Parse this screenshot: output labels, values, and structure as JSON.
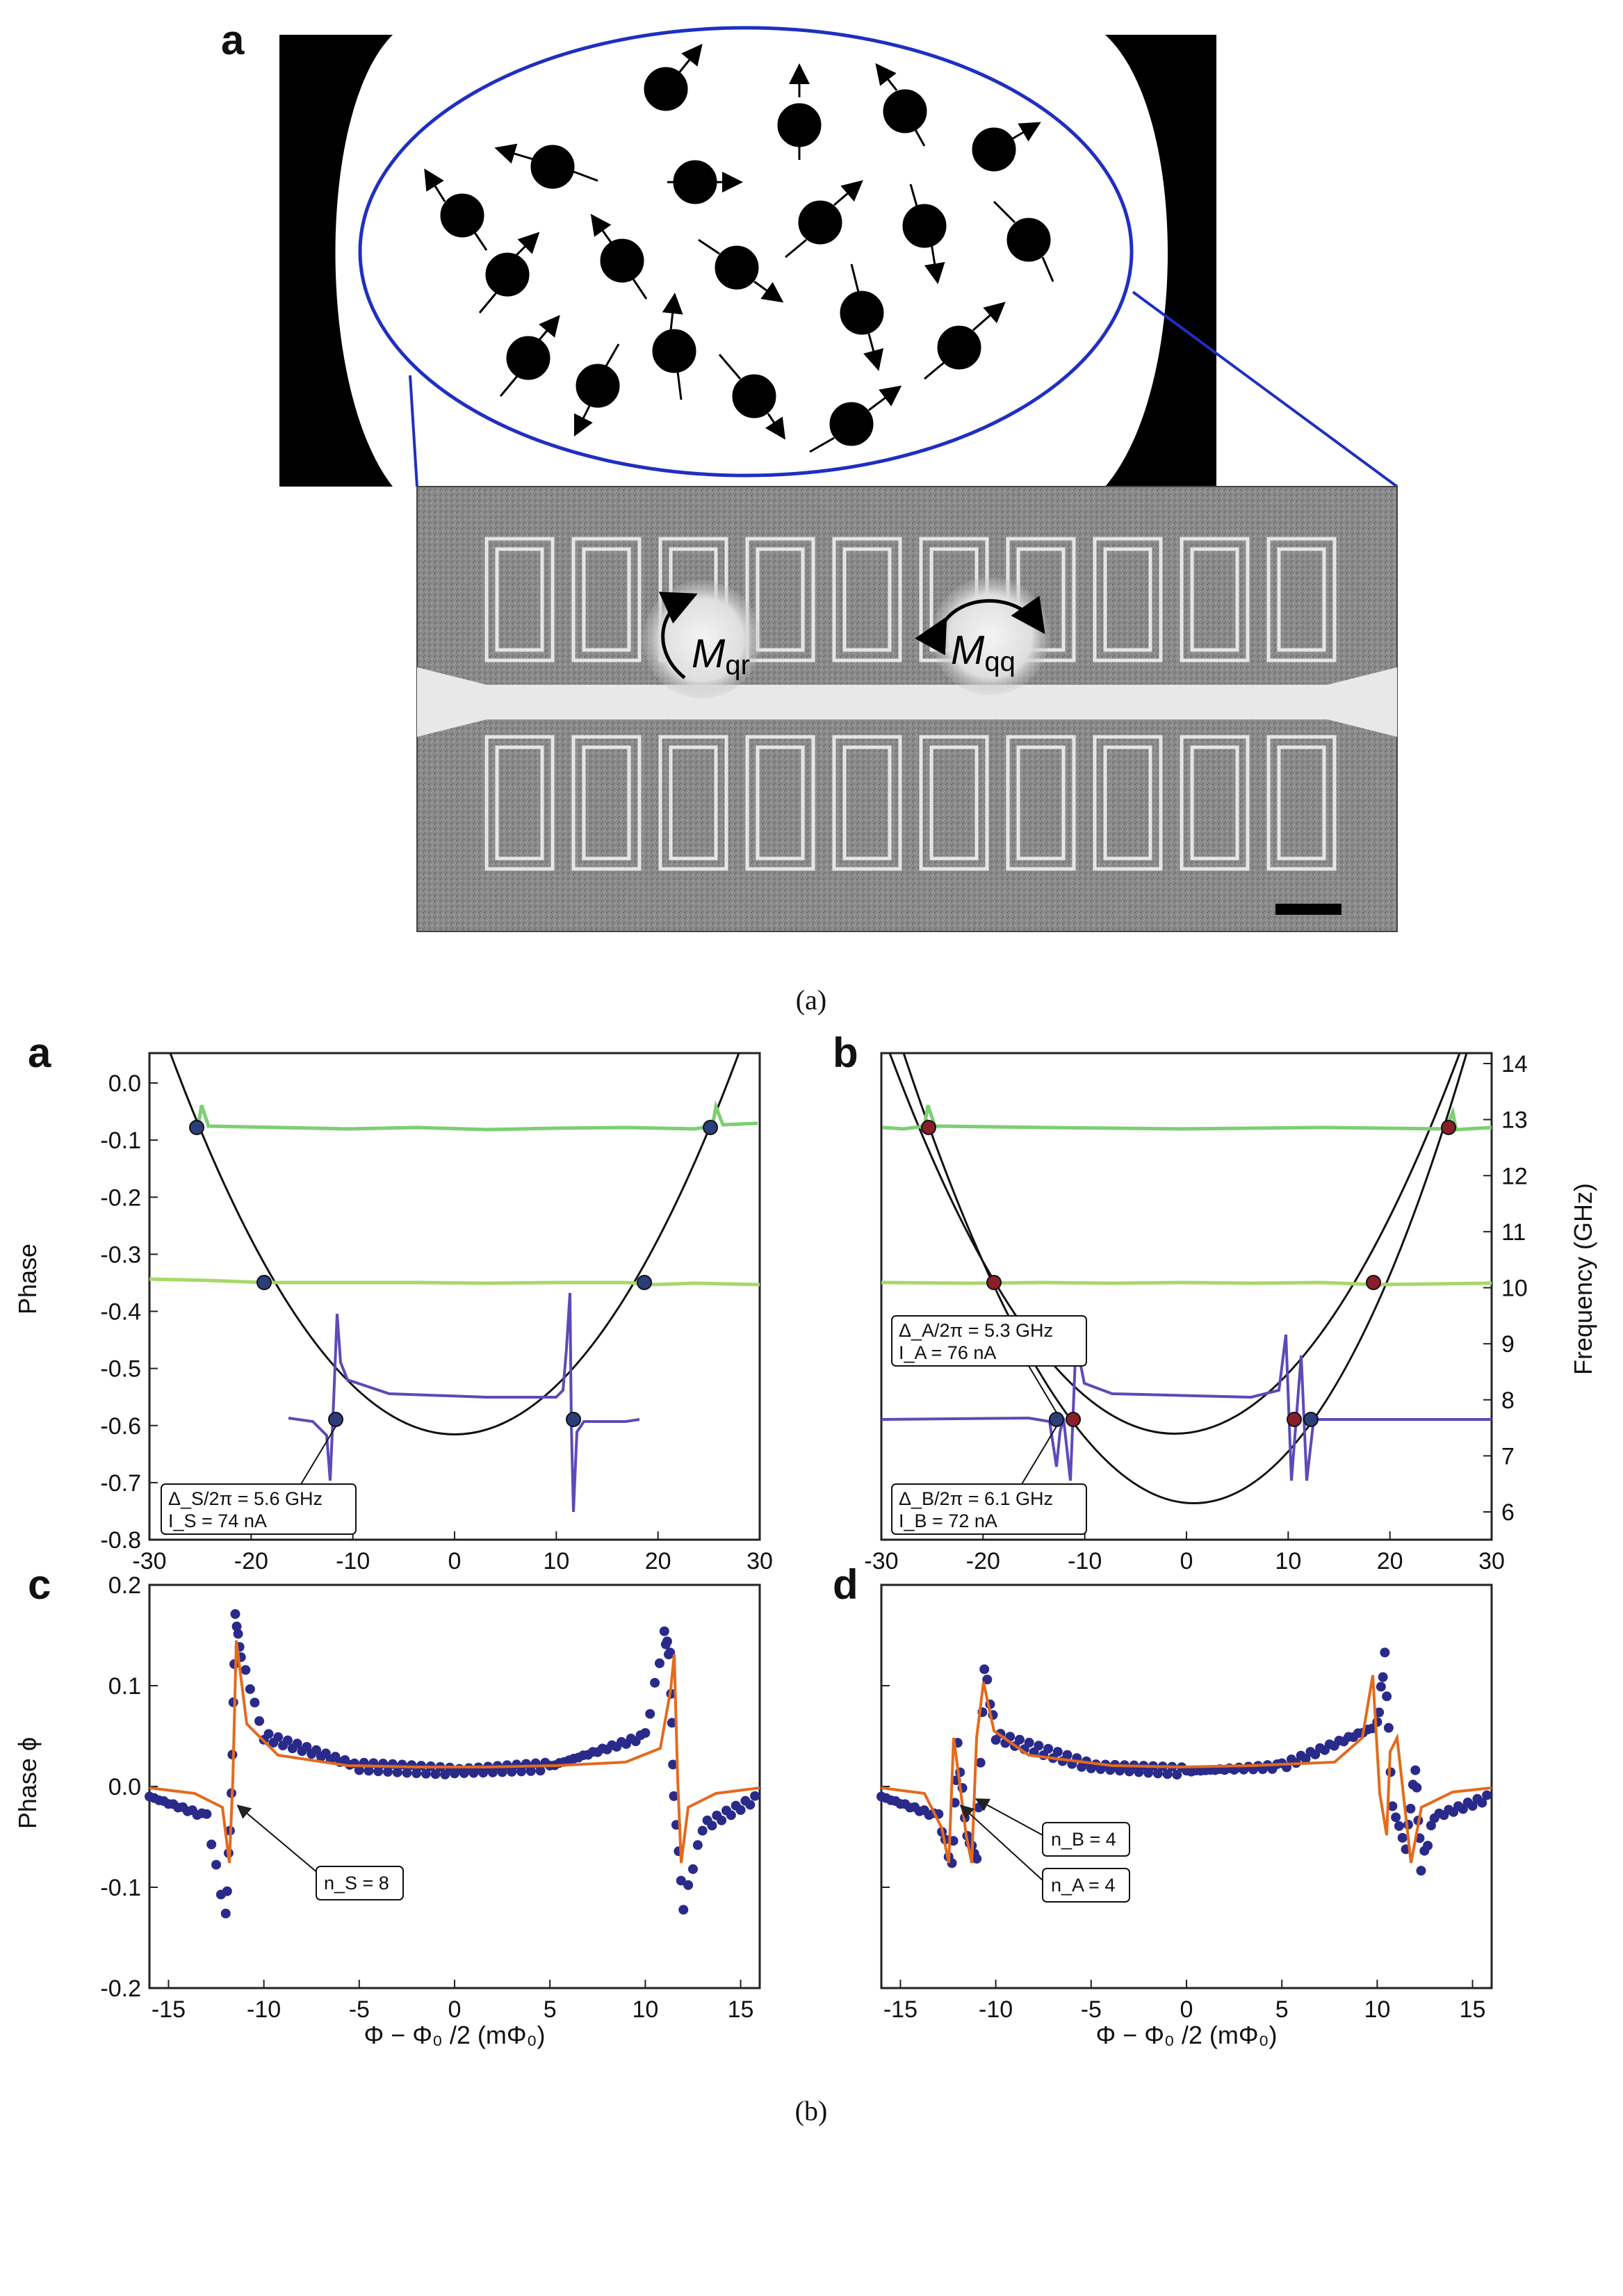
{
  "figure": {
    "caption_a": "(a)",
    "caption_b": "(b)"
  },
  "top": {
    "panel_letter": "a",
    "label_mqr": "M",
    "label_mqr_sub": "qr",
    "label_mqq": "M",
    "label_mqq_sub": "qq"
  },
  "plot_a": {
    "letter": "a",
    "ylabel": "Phase",
    "yticks": [
      "0.0",
      "-0.1",
      "-0.2",
      "-0.3",
      "-0.4",
      "-0.5",
      "-0.6",
      "-0.7",
      "-0.8"
    ],
    "xticks": [
      "-30",
      "-20",
      "-10",
      "0",
      "10",
      "20",
      "30"
    ],
    "anno_line1": "Δ_S/2π = 5.6 GHz",
    "anno_line2": "I_S = 74 nA"
  },
  "plot_b": {
    "letter": "b",
    "ylabel_right": "Frequency (GHz)",
    "yticks_right": [
      "14",
      "13",
      "12",
      "11",
      "10",
      "9",
      "8",
      "7",
      "6"
    ],
    "xticks": [
      "-30",
      "-20",
      "-10",
      "0",
      "10",
      "20",
      "30"
    ],
    "annoA_line1": "Δ_A/2π = 5.3 GHz",
    "annoA_line2": "I_A = 76 nA",
    "annoB_line1": "Δ_B/2π = 6.1 GHz",
    "annoB_line2": "I_B = 72 nA"
  },
  "plot_c": {
    "letter": "c",
    "ylabel": "Phase ϕ",
    "yticks": [
      "0.2",
      "0.1",
      "0.0",
      "-0.1",
      "-0.2"
    ],
    "xticks": [
      "-15",
      "-10",
      "-5",
      "0",
      "5",
      "10",
      "15"
    ],
    "xlabel": "Φ − Φ₀ /2 (mΦ₀)",
    "anno": "n_S = 8"
  },
  "plot_d": {
    "letter": "d",
    "xticks": [
      "-15",
      "-10",
      "-5",
      "0",
      "5",
      "10",
      "15"
    ],
    "xlabel": "Φ − Φ₀ /2 (mΦ₀)",
    "anno1": "n_B = 4",
    "anno2": "n_A = 4"
  },
  "colors": {
    "green_line": "#7ccf72",
    "lime_line": "#a8d86a",
    "purple_line": "#5a4bb8",
    "parabola": "#111111",
    "blue_dot": "#2a3f7a",
    "red_dot": "#8a1f2a",
    "fit_orange": "#e46a1c",
    "data_navy": "#2a2a8a",
    "ellipse_stroke": "#1f2fc0"
  },
  "chart_data": [
    {
      "type": "line",
      "panel": "a",
      "xlim": [
        -30,
        30
      ],
      "ylim": [
        -0.8,
        0.05
      ],
      "ylabel": "Phase",
      "series": [
        {
          "x": [
            -30,
            -25,
            -20,
            -10,
            0,
            10,
            20,
            25,
            30
          ],
          "y": [
            -0.055,
            -0.05,
            -0.055,
            -0.055,
            -0.055,
            -0.055,
            -0.055,
            -0.05,
            -0.055
          ]
        },
        {
          "x": [
            -30,
            -20,
            -10,
            0,
            10,
            20,
            30
          ],
          "y": [
            -0.31,
            -0.31,
            -0.31,
            -0.31,
            -0.31,
            -0.31,
            -0.31
          ]
        },
        {
          "x": [
            -16,
            -12,
            -11.5,
            -11,
            -10,
            0,
            10,
            11,
            11.5,
            12,
            16
          ],
          "y": [
            -0.56,
            -0.59,
            -0.66,
            -0.37,
            -0.5,
            -0.54,
            -0.5,
            -0.34,
            -0.66,
            -0.56,
            -0.56
          ]
        }
      ]
    },
    {
      "type": "line",
      "panel": "b",
      "xlim": [
        -30,
        30
      ],
      "ylim": [
        5.5,
        14
      ],
      "ylabel": "Frequency (GHz)"
    },
    {
      "type": "scatter",
      "panel": "c",
      "xlim": [
        -16,
        16
      ],
      "ylim": [
        -0.2,
        0.2
      ],
      "ylabel": "Phase ϕ",
      "xlabel": "Φ − Φ₀ /2 (mΦ₀)",
      "series": [
        {
          "x": [
            -16,
            -13,
            -12,
            -11.7,
            -11.5,
            -11.2,
            -10,
            -5,
            0,
            5,
            10,
            11,
            11.3,
            11.5,
            12,
            13,
            16
          ],
          "y": [
            -0.01,
            -0.03,
            -0.13,
            -0.01,
            0.17,
            0.13,
            0.05,
            0.02,
            0.015,
            0.02,
            0.05,
            0.15,
            0.13,
            -0.01,
            -0.12,
            -0.04,
            -0.01
          ]
        }
      ]
    },
    {
      "type": "scatter",
      "panel": "d",
      "xlim": [
        -16,
        16
      ],
      "ylim": [
        -0.2,
        0.2
      ],
      "xlabel": "Φ − Φ₀ /2 (mΦ₀)",
      "series": [
        {
          "x": [
            -16,
            -13,
            -12.3,
            -12,
            -11.5,
            -11,
            -10.6,
            -10,
            -5,
            0,
            5,
            10,
            10.4,
            10.8,
            11.5,
            12,
            12.3,
            13,
            16
          ],
          "y": [
            -0.01,
            -0.03,
            -0.08,
            0.04,
            -0.05,
            -0.07,
            0.12,
            0.05,
            0.02,
            0.015,
            0.02,
            0.06,
            0.13,
            -0.02,
            -0.06,
            0.02,
            -0.08,
            -0.03,
            -0.01
          ]
        }
      ]
    }
  ]
}
